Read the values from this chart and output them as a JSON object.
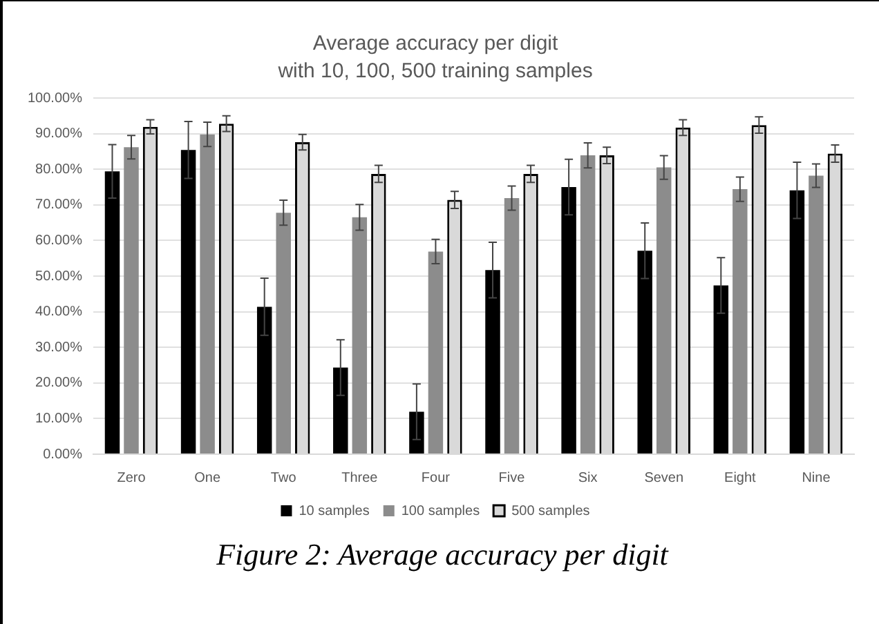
{
  "chart_data": {
    "type": "bar",
    "title": "Average accuracy per digit",
    "subtitle": "with 10, 100, 500 training samples",
    "categories": [
      "Zero",
      "One",
      "Two",
      "Three",
      "Four",
      "Five",
      "Six",
      "Seven",
      "Eight",
      "Nine"
    ],
    "series": [
      {
        "name": "10 samples",
        "color": "#000000",
        "values": [
          79.4,
          85.4,
          41.4,
          24.3,
          11.9,
          51.7,
          75.0,
          57.1,
          47.4,
          74.1
        ],
        "errors": [
          7.5,
          8,
          8,
          7.8,
          7.8,
          7.8,
          7.8,
          7.8,
          7.8,
          7.9
        ]
      },
      {
        "name": "100 samples",
        "color": "#8c8c8c",
        "values": [
          86.2,
          89.8,
          67.8,
          66.5,
          56.9,
          71.9,
          83.9,
          80.5,
          74.4,
          78.2
        ],
        "errors": [
          3.3,
          3.4,
          3.5,
          3.6,
          3.4,
          3.4,
          3.5,
          3.3,
          3.4,
          3.3
        ]
      },
      {
        "name": "500 samples",
        "color": "#d9d9d9",
        "values": [
          91.9,
          92.8,
          87.6,
          78.7,
          71.4,
          78.7,
          83.9,
          91.7,
          92.4,
          84.4
        ],
        "errors": [
          2,
          2.2,
          2.2,
          2.4,
          2.4,
          2.4,
          2.3,
          2.2,
          2.3,
          2.4
        ]
      }
    ],
    "ylim": [
      0,
      100
    ],
    "yticks": [
      {
        "value": 0,
        "label": "0.00%"
      },
      {
        "value": 10,
        "label": "10.00%"
      },
      {
        "value": 20,
        "label": "20.00%"
      },
      {
        "value": 30,
        "label": "30.00%"
      },
      {
        "value": 40,
        "label": "40.00%"
      },
      {
        "value": 50,
        "label": "50.00%"
      },
      {
        "value": 60,
        "label": "60.00%"
      },
      {
        "value": 70,
        "label": "70.00%"
      },
      {
        "value": 80,
        "label": "80.00%"
      },
      {
        "value": 90,
        "label": "90.00%"
      },
      {
        "value": 100,
        "label": "100.00%"
      }
    ],
    "grid": "y",
    "legend": "bottom",
    "annotations": [
      "Figure 2: Average accuracy per digit"
    ]
  }
}
